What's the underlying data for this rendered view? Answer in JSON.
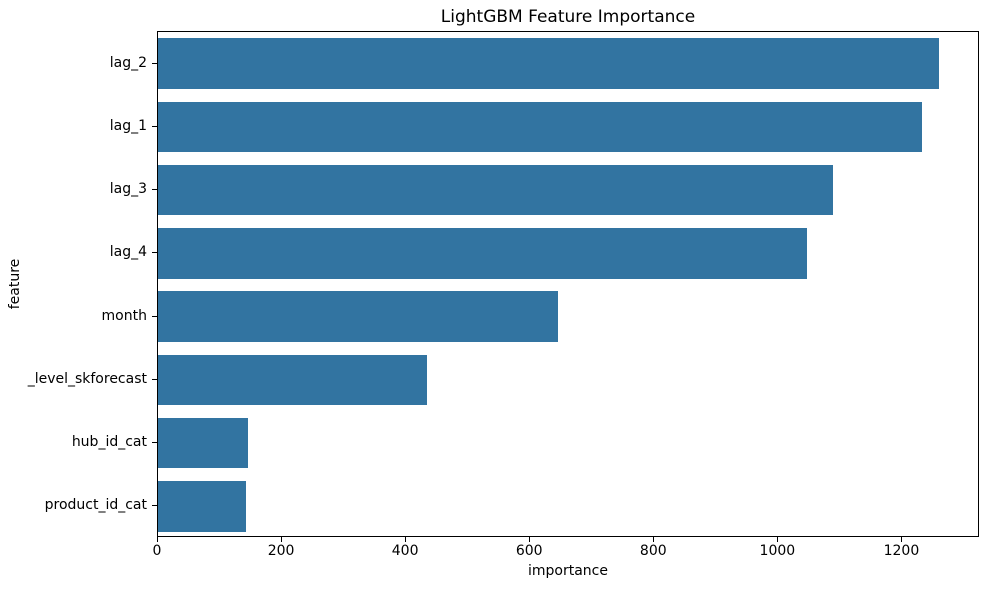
{
  "chart_data": {
    "type": "bar",
    "orientation": "horizontal",
    "title": "LightGBM Feature Importance",
    "xlabel": "importance",
    "ylabel": "feature",
    "categories": [
      "lag_2",
      "lag_1",
      "lag_3",
      "lag_4",
      "month",
      "_level_skforecast",
      "hub_id_cat",
      "product_id_cat"
    ],
    "values": [
      1262,
      1235,
      1091,
      1049,
      647,
      434,
      146,
      142
    ],
    "xticks": [
      0,
      200,
      400,
      600,
      800,
      1000,
      1200
    ],
    "xlim": [
      0,
      1325
    ],
    "bar_color": "#3274a1",
    "grid": false,
    "legend_position": "none"
  }
}
